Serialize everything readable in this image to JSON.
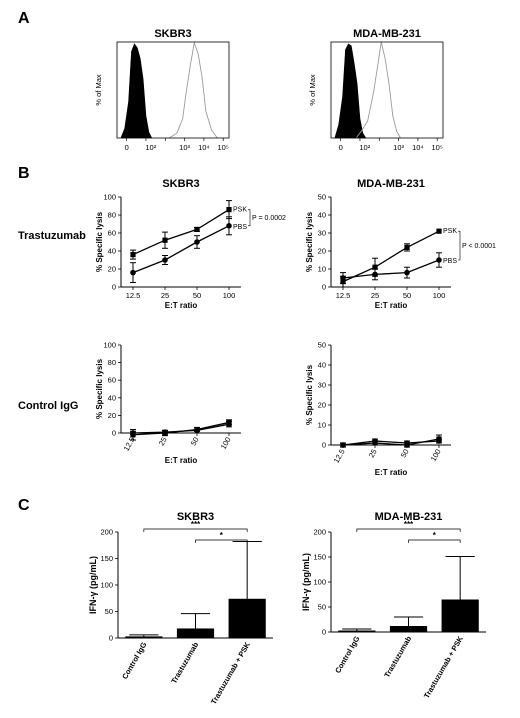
{
  "panel_labels": {
    "a": "A",
    "b": "B",
    "c": "C"
  },
  "row_labels": {
    "trastuzumab": "Trastuzumab",
    "control": "Control IgG"
  },
  "chart_data": [
    {
      "id": "flow_skbr3",
      "type": "histogram",
      "title": "SKBR3",
      "ylabel": "% of Max",
      "x_tick_labels": [
        "0",
        "10²",
        "10³",
        "10⁴",
        "10⁵"
      ],
      "ylim": [
        0,
        100
      ],
      "series": [
        {
          "name": "",
          "style": "filled black",
          "x": [
            -0.3,
            -0.1,
            0.1,
            0.25,
            0.4,
            0.55,
            0.7,
            0.85,
            1.0,
            1.15,
            1.3
          ],
          "y": [
            0,
            10,
            40,
            88,
            100,
            92,
            85,
            60,
            25,
            6,
            0
          ]
        },
        {
          "name": "",
          "style": "open gray",
          "x": [
            2.2,
            2.6,
            2.9,
            3.1,
            3.3,
            3.5,
            3.7,
            3.9,
            4.1,
            4.4,
            4.7
          ],
          "y": [
            0,
            5,
            22,
            48,
            78,
            97,
            90,
            62,
            30,
            8,
            0
          ]
        }
      ]
    },
    {
      "id": "flow_mda",
      "type": "histogram",
      "title": "MDA-MB-231",
      "ylabel": "% of Max",
      "x_tick_labels": [
        "0",
        "10²",
        "10³",
        "10⁴",
        "10⁵"
      ],
      "ylim": [
        0,
        100
      ],
      "series": [
        {
          "name": "",
          "style": "filled black",
          "x": [
            -0.3,
            -0.1,
            0.1,
            0.25,
            0.4,
            0.55,
            0.7,
            0.85,
            1.0,
            1.15,
            1.3
          ],
          "y": [
            0,
            12,
            45,
            90,
            100,
            94,
            80,
            55,
            22,
            5,
            0
          ]
        },
        {
          "name": "",
          "style": "open gray",
          "x": [
            0.8,
            1.1,
            1.4,
            1.7,
            1.9,
            2.1,
            2.3,
            2.5,
            2.7,
            2.9,
            3.1
          ],
          "y": [
            0,
            8,
            20,
            45,
            75,
            98,
            85,
            55,
            25,
            7,
            0
          ]
        }
      ]
    },
    {
      "id": "lysis_skbr3_trast",
      "type": "line",
      "title": "SKBR3",
      "xlabel": "E:T ratio",
      "ylabel": "% Specific lysis",
      "categories": [
        "12.5",
        "25",
        "50",
        "100"
      ],
      "ylim": [
        0,
        100
      ],
      "yticks": [
        0,
        20,
        40,
        60,
        80,
        100
      ],
      "series": [
        {
          "name": "PSK",
          "values": [
            36,
            52,
            64,
            86
          ],
          "errors": [
            5,
            9,
            2,
            10
          ]
        },
        {
          "name": "PBS",
          "values": [
            16,
            30,
            50,
            68
          ],
          "errors": [
            11,
            5,
            7,
            10
          ]
        }
      ],
      "annotation": "P = 0.0002"
    },
    {
      "id": "lysis_mda_trast",
      "type": "line",
      "title": "MDA-MB-231",
      "xlabel": "E:T ratio",
      "ylabel": "% Specific lysis",
      "categories": [
        "12.5",
        "25",
        "50",
        "100"
      ],
      "ylim": [
        0,
        50
      ],
      "yticks": [
        0,
        10,
        20,
        30,
        40,
        50
      ],
      "series": [
        {
          "name": "PSK",
          "values": [
            3,
            11,
            22,
            31
          ],
          "errors": [
            3,
            5,
            2,
            0
          ]
        },
        {
          "name": "PBS",
          "values": [
            5,
            7,
            8,
            15
          ],
          "errors": [
            3,
            3,
            3,
            4
          ]
        }
      ],
      "annotation": "P < 0.0001"
    },
    {
      "id": "lysis_skbr3_ctrl",
      "type": "line",
      "title": "",
      "xlabel": "E:T ratio",
      "ylabel": "% Specific lysis",
      "categories": [
        "12.5",
        "25",
        "50",
        "100"
      ],
      "ylim": [
        0,
        100
      ],
      "yticks": [
        0,
        20,
        40,
        60,
        80,
        100
      ],
      "series": [
        {
          "name": "",
          "values": [
            -2,
            0,
            4,
            12
          ],
          "errors": [
            6,
            3,
            2,
            3
          ]
        },
        {
          "name": "",
          "values": [
            0,
            1,
            3,
            10
          ],
          "errors": [
            2,
            2,
            1,
            3
          ]
        }
      ]
    },
    {
      "id": "lysis_mda_ctrl",
      "type": "line",
      "title": "",
      "xlabel": "E:T ratio",
      "ylabel": "% Specific lysis",
      "categories": [
        "12.5",
        "25",
        "50",
        "100"
      ],
      "ylim": [
        0,
        50
      ],
      "yticks": [
        0,
        10,
        20,
        30,
        40,
        50
      ],
      "series": [
        {
          "name": "",
          "values": [
            0,
            1,
            0,
            3
          ],
          "errors": [
            1,
            1,
            1,
            2
          ]
        },
        {
          "name": "",
          "values": [
            0,
            2,
            1,
            2
          ],
          "errors": [
            1,
            1,
            1,
            1
          ]
        }
      ]
    },
    {
      "id": "ifng_skbr3",
      "type": "bar",
      "title": "SKBR3",
      "ylabel": "IFN-γ (pg/mL)",
      "categories": [
        "Control IgG",
        "Trastuzumab",
        "Trastuzumab + PSK"
      ],
      "values": [
        3,
        18,
        74
      ],
      "errors": [
        3,
        28,
        108
      ],
      "ylim": [
        0,
        200
      ],
      "yticks": [
        0,
        50,
        100,
        150,
        200
      ],
      "significance": [
        {
          "from": 0,
          "to": 2,
          "label": "***"
        },
        {
          "from": 1,
          "to": 2,
          "label": "*"
        }
      ]
    },
    {
      "id": "ifng_mda",
      "type": "bar",
      "title": "MDA-MB-231",
      "ylabel": "IFN-γ (pg/mL)",
      "categories": [
        "Control IgG",
        "Trastuzumab",
        "Trastuzumab + PSK"
      ],
      "values": [
        3,
        12,
        65
      ],
      "errors": [
        3,
        18,
        86
      ],
      "ylim": [
        0,
        200
      ],
      "yticks": [
        0,
        50,
        100,
        150,
        200
      ],
      "significance": [
        {
          "from": 0,
          "to": 2,
          "label": "***"
        },
        {
          "from": 1,
          "to": 2,
          "label": "*"
        }
      ]
    }
  ]
}
